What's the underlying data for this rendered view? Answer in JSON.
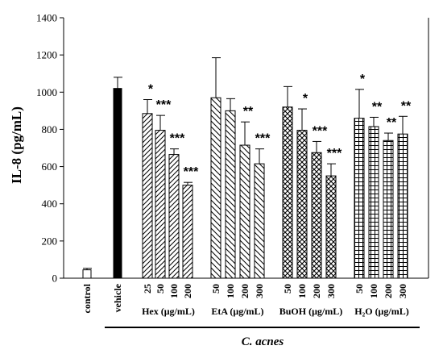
{
  "chart_data": {
    "type": "bar",
    "ylabel": "IL-8 (pg/mL)",
    "ylim": [
      0,
      1400
    ],
    "yticks": [
      "0",
      "200",
      "400",
      "600",
      "800",
      "1000",
      "1200",
      "1400"
    ],
    "bars": [
      {
        "label": "control",
        "value": 45,
        "error": 8,
        "pattern": "empty",
        "sig": ""
      },
      {
        "label": "vehicle",
        "value": 1020,
        "error": 60,
        "pattern": "solid",
        "sig": ""
      },
      {
        "label": "25",
        "value": 885,
        "error": 75,
        "pattern": "diag",
        "sig": "*"
      },
      {
        "label": "50",
        "value": 795,
        "error": 80,
        "pattern": "diag",
        "sig": "***"
      },
      {
        "label": "100",
        "value": 665,
        "error": 30,
        "pattern": "diag",
        "sig": "***"
      },
      {
        "label": "200",
        "value": 500,
        "error": 15,
        "pattern": "diag",
        "sig": "***"
      },
      {
        "label": "50",
        "value": 970,
        "error": 215,
        "pattern": "backdiag",
        "sig": ""
      },
      {
        "label": "100",
        "value": 900,
        "error": 65,
        "pattern": "backdiag",
        "sig": ""
      },
      {
        "label": "200",
        "value": 715,
        "error": 125,
        "pattern": "backdiag",
        "sig": "**"
      },
      {
        "label": "300",
        "value": 615,
        "error": 80,
        "pattern": "backdiag",
        "sig": "***"
      },
      {
        "label": "50",
        "value": 920,
        "error": 110,
        "pattern": "cross",
        "sig": ""
      },
      {
        "label": "100",
        "value": 795,
        "error": 115,
        "pattern": "cross",
        "sig": "*"
      },
      {
        "label": "200",
        "value": 675,
        "error": 60,
        "pattern": "cross",
        "sig": "***"
      },
      {
        "label": "300",
        "value": 550,
        "error": 65,
        "pattern": "cross",
        "sig": "***"
      },
      {
        "label": "50",
        "value": 860,
        "error": 155,
        "pattern": "grid",
        "sig": "*"
      },
      {
        "label": "100",
        "value": 815,
        "error": 50,
        "pattern": "grid",
        "sig": "**"
      },
      {
        "label": "200",
        "value": 740,
        "error": 40,
        "pattern": "grid",
        "sig": "**"
      },
      {
        "label": "300",
        "value": 775,
        "error": 95,
        "pattern": "grid",
        "sig": "**"
      }
    ],
    "groups": [
      {
        "label": "Hex (μg/mL)"
      },
      {
        "label": "EtA (μg/mL)"
      },
      {
        "label": "BuOH (μg/mL)"
      },
      {
        "label": "H₂O (μg/mL)"
      }
    ],
    "bottom_label": "C. acnes"
  }
}
